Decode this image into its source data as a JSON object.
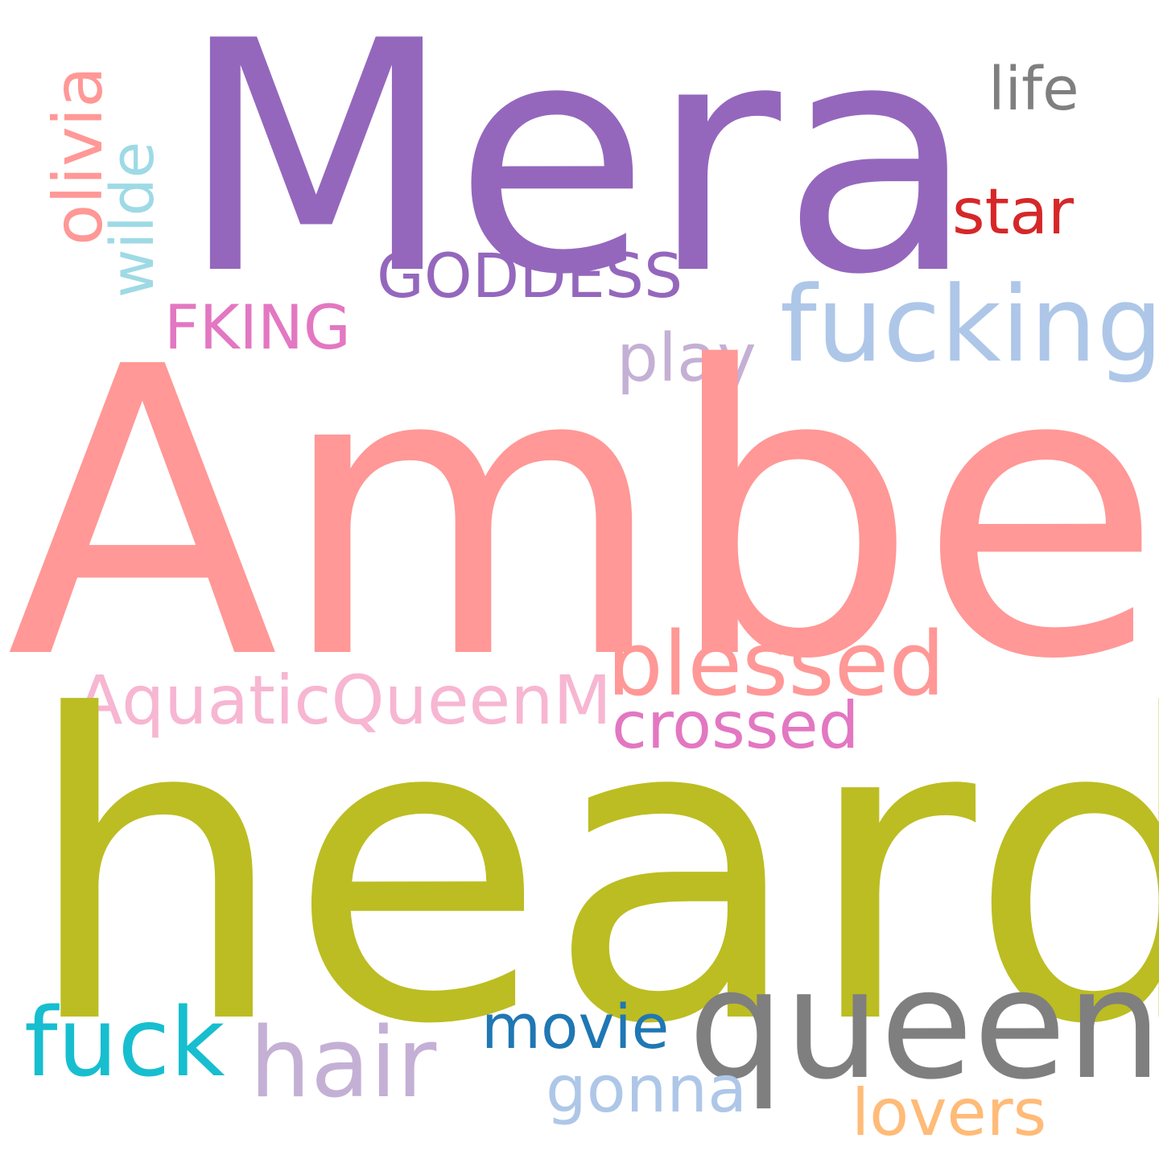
{
  "words": {
    "mera": {
      "text": "Mera",
      "color": "#9467bd"
    },
    "amber": {
      "text": "Amber",
      "color": "#ff9896"
    },
    "heard": {
      "text": "heard",
      "color": "#bcbd22"
    },
    "life": {
      "text": "life",
      "color": "#7f7f7f"
    },
    "star": {
      "text": "star",
      "color": "#d62728"
    },
    "goddess": {
      "text": "GODDESS",
      "color": "#9467bd"
    },
    "fucking": {
      "text": "fucking",
      "color": "#aec7e8"
    },
    "fking": {
      "text": "FKING",
      "color": "#e377c2"
    },
    "play": {
      "text": "play",
      "color": "#c5b0d5"
    },
    "olivia": {
      "text": "olivia",
      "color": "#ff9896"
    },
    "wilde": {
      "text": "wilde",
      "color": "#9edae5"
    },
    "blessed": {
      "text": "blessed",
      "color": "#ff9896"
    },
    "aquatic": {
      "text": "AquaticQueenM",
      "color": "#f7b6d2"
    },
    "crossed": {
      "text": "crossed",
      "color": "#e377c2"
    },
    "queen": {
      "text": "queen",
      "color": "#7f7f7f"
    },
    "fuck": {
      "text": "fuck",
      "color": "#17becf"
    },
    "movie": {
      "text": "movie",
      "color": "#1f77b4"
    },
    "hair": {
      "text": "hair",
      "color": "#c5b0d5"
    },
    "gonna": {
      "text": "gonna",
      "color": "#aec7e8"
    },
    "lovers": {
      "text": "lovers",
      "color": "#ffbb78"
    }
  }
}
